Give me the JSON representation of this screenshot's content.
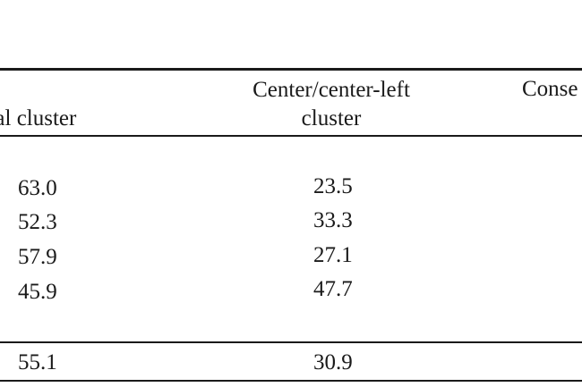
{
  "table": {
    "headers": {
      "col_a": "eral cluster",
      "col_b": "Center/center-left cluster",
      "col_c": "Conse"
    },
    "rows": [
      {
        "col_a": "63.0",
        "col_b": "23.5"
      },
      {
        "col_a": "52.3",
        "col_b": "33.3"
      },
      {
        "col_a": "57.9",
        "col_b": "27.1"
      },
      {
        "col_a": "45.9",
        "col_b": "47.7"
      }
    ],
    "total": {
      "col_a": "55.1",
      "col_b": "30.9"
    }
  }
}
